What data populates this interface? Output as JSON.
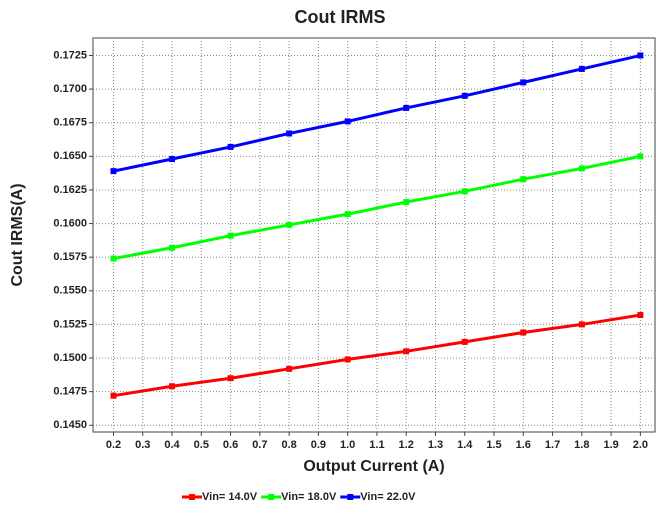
{
  "chart_data": {
    "type": "line",
    "title": "Cout IRMS",
    "x_label": "Output Current (A)",
    "y_label": "Cout IRMS(A)",
    "x": [
      0.2,
      0.4,
      0.6,
      0.8,
      1.0,
      1.2,
      1.4,
      1.6,
      1.8,
      2.0
    ],
    "series": [
      {
        "name": "Vin= 14.0V",
        "color": "#ff0000",
        "values": [
          0.1472,
          0.1479,
          0.1485,
          0.1492,
          0.1499,
          0.1505,
          0.1512,
          0.1519,
          0.1525,
          0.1532
        ]
      },
      {
        "name": "Vin= 18.0V",
        "color": "#00ff00",
        "values": [
          0.1574,
          0.1582,
          0.1591,
          0.1599,
          0.1607,
          0.1616,
          0.1624,
          0.1633,
          0.1641,
          0.165
        ]
      },
      {
        "name": "Vin= 22.0V",
        "color": "#0000ff",
        "values": [
          0.1639,
          0.1648,
          0.1657,
          0.1667,
          0.1676,
          0.1686,
          0.1695,
          0.1705,
          0.1715,
          0.1725
        ]
      }
    ],
    "xlim": [
      0.13,
      2.05
    ],
    "xticks": [
      0.2,
      0.3,
      0.4,
      0.5,
      0.6,
      0.7,
      0.8,
      0.9,
      {
        "value": 1,
        "label": "1.0"
      },
      1.1,
      1.2,
      1.3,
      1.4,
      1.5,
      1.6,
      1.7,
      1.8,
      1.9,
      {
        "value": 2,
        "label": "2.0"
      }
    ],
    "ylim": [
      0.1445,
      0.1738
    ],
    "yticks": [
      {
        "value": 0.145,
        "label": "0.1450"
      },
      0.1475,
      {
        "value": 0.15,
        "label": "0.1500"
      },
      0.1525,
      {
        "value": 0.155,
        "label": "0.1550"
      },
      0.1575,
      {
        "value": 0.16,
        "label": "0.1600"
      },
      0.1625,
      {
        "value": 0.165,
        "label": "0.1650"
      },
      0.1675,
      {
        "value": 0.17,
        "label": "0.1700"
      },
      0.1725
    ],
    "grid": true,
    "legend": "bottom"
  }
}
